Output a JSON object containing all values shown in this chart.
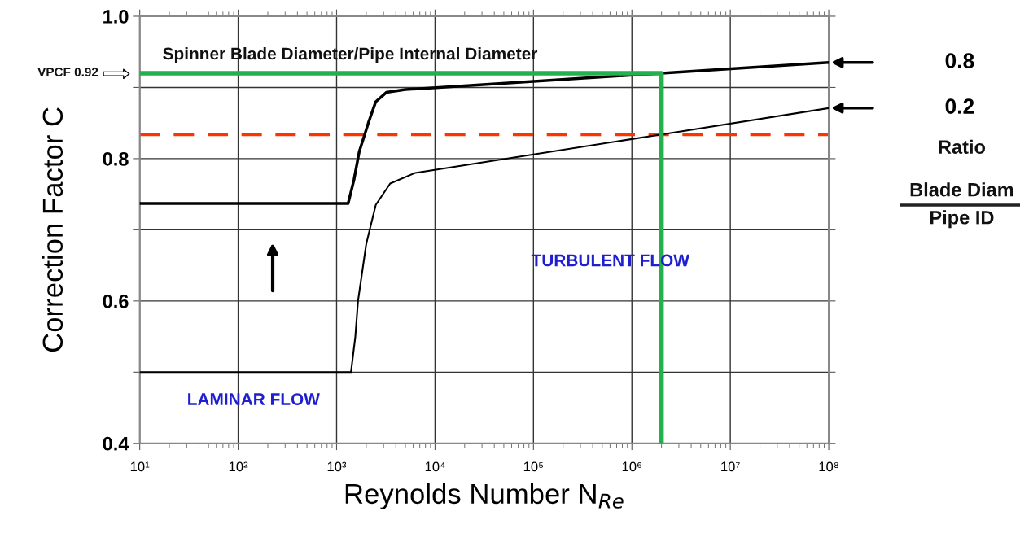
{
  "chart_data": {
    "type": "line",
    "xlabel": "Reynolds Number N$_{Re}$",
    "ylabel": "Correction Factor C",
    "log": "x",
    "grid": true,
    "legend": false,
    "marker": "none",
    "line_style": "solid",
    "xlim": [
      10,
      100000000
    ],
    "ylim": [
      0.4,
      1.0
    ],
    "xticks": [
      {
        "value": 10,
        "label": "10¹"
      },
      {
        "value": 100,
        "label": "10²"
      },
      {
        "value": 1000,
        "label": "10³"
      },
      {
        "value": 10000,
        "label": "10⁴"
      },
      {
        "value": 100000,
        "label": "10⁵"
      },
      {
        "value": 1000000,
        "label": "10⁶"
      },
      {
        "value": 10000000,
        "label": "10⁷"
      },
      {
        "value": 100000000,
        "label": "10⁸"
      }
    ],
    "yticks": [
      0.4,
      {
        "value": 0.5,
        "label": null
      },
      0.6,
      {
        "value": 0.7,
        "label": null
      },
      0.8,
      {
        "value": 0.9,
        "label": null
      },
      {
        "value": 1.0,
        "label": "1.0"
      }
    ],
    "series": [
      {
        "name": "0.8",
        "color": "#000000",
        "x": [
          10,
          1310,
          1500,
          1700,
          2100,
          2500,
          3200,
          5000,
          2000000,
          100000000
        ],
        "values": [
          0.737,
          0.737,
          0.77,
          0.81,
          0.85,
          0.88,
          0.893,
          0.897,
          0.92,
          0.935
        ]
      },
      {
        "name": "0.2",
        "color": "#000000",
        "x": [
          10,
          1400,
          1550,
          1650,
          2000,
          2500,
          3500,
          6300,
          2000000,
          100000000
        ],
        "values": [
          0.5,
          0.5,
          0.55,
          0.6,
          0.68,
          0.735,
          0.765,
          0.78,
          0.834,
          0.871
        ]
      },
      {
        "color": "#22b14c",
        "x": [
          10,
          2000000,
          2000000
        ],
        "values": [
          0.92,
          0.92,
          0.4
        ]
      }
    ],
    "ref_lines": [
      {
        "axis": "y",
        "value": 0.834,
        "color": "#ff3300",
        "line_style": "dashed"
      }
    ],
    "annotations": [
      "VPCF 0.92",
      "Spinner Blade Diameter/Pipe Internal Diameter",
      "TURBULENT FLOW",
      "LAMINAR FLOW",
      "Ratio",
      "Blade Diam",
      "Pipe ID"
    ]
  }
}
